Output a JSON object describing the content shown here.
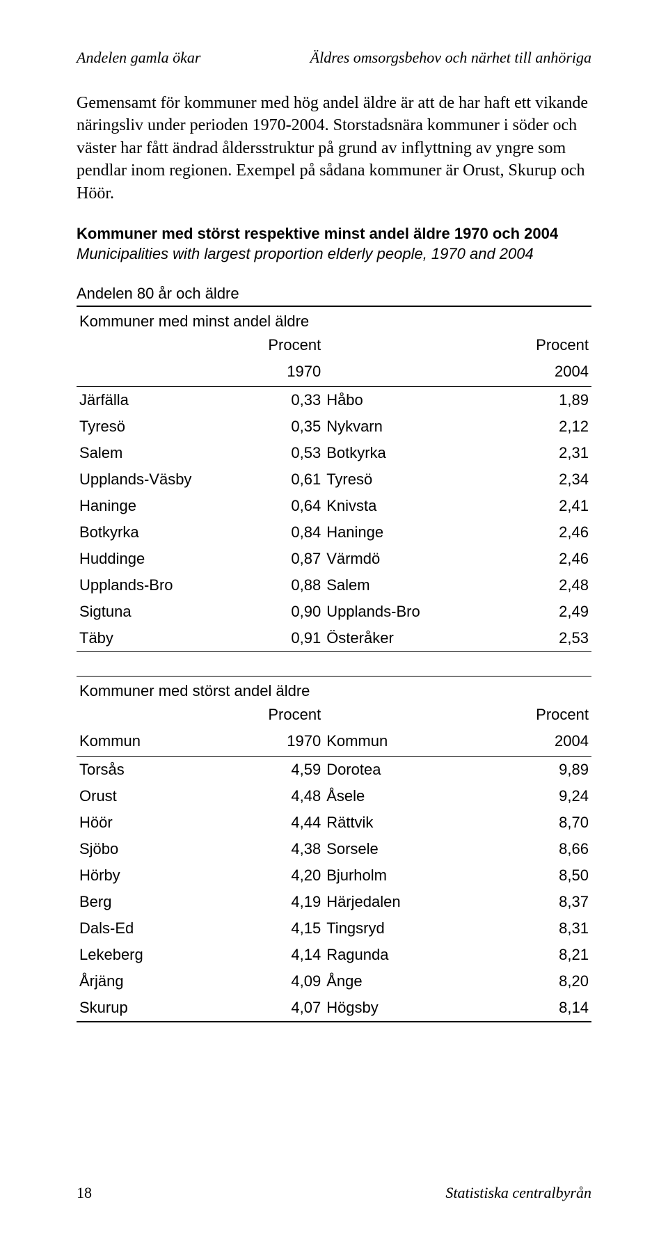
{
  "header": {
    "left": "Andelen gamla ökar",
    "right": "Äldres omsorgsbehov och närhet till anhöriga"
  },
  "paragraph": "Gemensamt för kommuner med hög andel äldre är att de har haft ett vikande näringsliv under perioden 1970-2004. Storstadsnära kommuner i söder och väster har fått ändrad åldersstruktur på grund av inflyttning av yngre som pendlar inom regionen. Exempel på sådana kommuner är Orust, Skurup och Höör.",
  "table_title_bold": "Kommuner med störst respektive minst andel äldre 1970 och 2004",
  "table_title_italic": "Municipalities with largest proportion elderly people, 1970 and 2004",
  "section_label": "Andelen 80 år och äldre",
  "table_minst": {
    "caption": "Kommuner med minst andel äldre",
    "head": {
      "c1": "",
      "c2a": "Procent",
      "c2b": "1970",
      "c3": "",
      "c4a": "Procent",
      "c4b": "2004"
    },
    "rows": [
      {
        "a": "Järfälla",
        "b": "0,33",
        "c": "Håbo",
        "d": "1,89"
      },
      {
        "a": "Tyresö",
        "b": "0,35",
        "c": "Nykvarn",
        "d": "2,12"
      },
      {
        "a": "Salem",
        "b": "0,53",
        "c": "Botkyrka",
        "d": "2,31"
      },
      {
        "a": "Upplands-Väsby",
        "b": "0,61",
        "c": "Tyresö",
        "d": "2,34"
      },
      {
        "a": "Haninge",
        "b": "0,64",
        "c": "Knivsta",
        "d": "2,41"
      },
      {
        "a": "Botkyrka",
        "b": "0,84",
        "c": "Haninge",
        "d": "2,46"
      },
      {
        "a": "Huddinge",
        "b": "0,87",
        "c": "Värmdö",
        "d": "2,46"
      },
      {
        "a": "Upplands-Bro",
        "b": "0,88",
        "c": "Salem",
        "d": "2,48"
      },
      {
        "a": "Sigtuna",
        "b": "0,90",
        "c": "Upplands-Bro",
        "d": "2,49"
      },
      {
        "a": "Täby",
        "b": "0,91",
        "c": "Österåker",
        "d": "2,53"
      }
    ]
  },
  "table_storst": {
    "caption": "Kommuner med störst andel äldre",
    "head": {
      "c1": "Kommun",
      "c2a": "Procent",
      "c2b": "1970",
      "c3": "Kommun",
      "c4a": "Procent",
      "c4b": "2004"
    },
    "rows": [
      {
        "a": "Torsås",
        "b": "4,59",
        "c": "Dorotea",
        "d": "9,89"
      },
      {
        "a": "Orust",
        "b": "4,48",
        "c": "Åsele",
        "d": "9,24"
      },
      {
        "a": "Höör",
        "b": "4,44",
        "c": "Rättvik",
        "d": "8,70"
      },
      {
        "a": "Sjöbo",
        "b": "4,38",
        "c": "Sorsele",
        "d": "8,66"
      },
      {
        "a": "Hörby",
        "b": "4,20",
        "c": "Bjurholm",
        "d": "8,50"
      },
      {
        "a": "Berg",
        "b": "4,19",
        "c": "Härjedalen",
        "d": "8,37"
      },
      {
        "a": "Dals-Ed",
        "b": "4,15",
        "c": "Tingsryd",
        "d": "8,31"
      },
      {
        "a": "Lekeberg",
        "b": "4,14",
        "c": "Ragunda",
        "d": "8,21"
      },
      {
        "a": "Årjäng",
        "b": "4,09",
        "c": "Ånge",
        "d": "8,20"
      },
      {
        "a": "Skurup",
        "b": "4,07",
        "c": "Högsby",
        "d": "8,14"
      }
    ]
  },
  "footer": {
    "page": "18",
    "source": "Statistiska centralbyrån"
  }
}
